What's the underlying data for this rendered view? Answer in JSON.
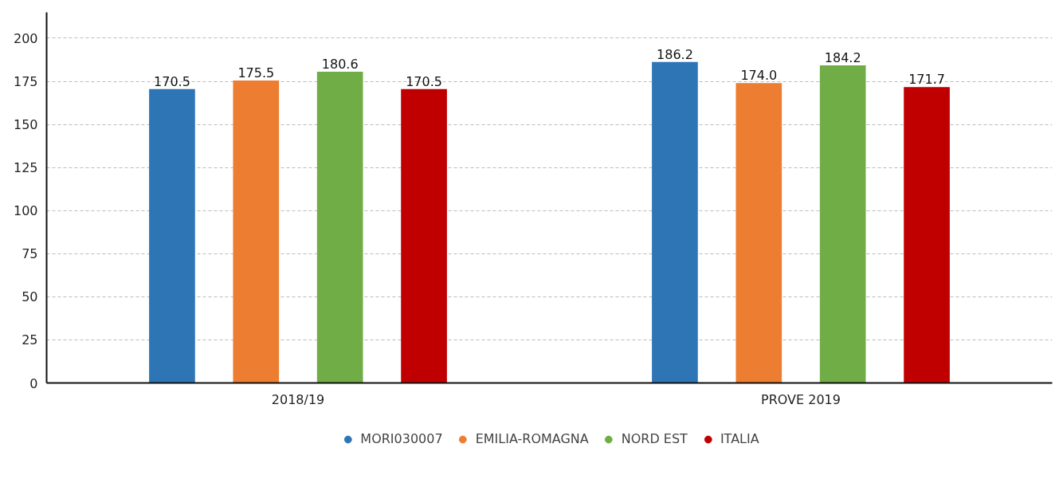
{
  "chart_data": {
    "type": "bar",
    "categories": [
      "2018/19",
      "PROVE 2019"
    ],
    "series": [
      {
        "name": "MORI030007",
        "color": "#2e75b6",
        "values": [
          170.5,
          186.2
        ],
        "value_labels": [
          "170.5",
          "186.2"
        ]
      },
      {
        "name": "EMILIA-ROMAGNA",
        "color": "#ed7d31",
        "values": [
          175.5,
          174.0
        ],
        "value_labels": [
          "175.5",
          "174.0"
        ]
      },
      {
        "name": "NORD EST",
        "color": "#70ad47",
        "values": [
          180.6,
          184.2
        ],
        "value_labels": [
          "180.6",
          "184.2"
        ]
      },
      {
        "name": "ITALIA",
        "color": "#c00000",
        "values": [
          170.5,
          171.7
        ],
        "value_labels": [
          "170.5",
          "171.7"
        ]
      }
    ],
    "ylim": [
      0,
      215
    ],
    "yticks": [
      0,
      25,
      50,
      75,
      100,
      125,
      150,
      175,
      200
    ],
    "grid": "y",
    "legend": "bottom"
  }
}
